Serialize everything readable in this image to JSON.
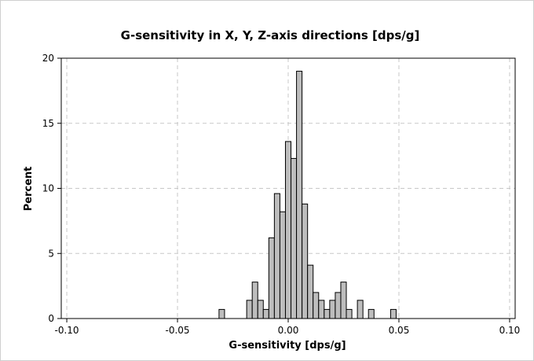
{
  "chart_data": {
    "type": "bar",
    "title": "G-sensitivity in X, Y, Z-axis directions [dps/g]",
    "xlabel": "G-sensitivity [dps/g]",
    "ylabel": "Percent",
    "xlim": [
      -0.1025,
      0.1025
    ],
    "ylim": [
      0,
      20
    ],
    "xticks": [
      -0.1,
      -0.05,
      0.0,
      0.05,
      0.1
    ],
    "xtick_labels": [
      "-0.10",
      "-0.05",
      "0.00",
      "0.05",
      "0.10"
    ],
    "yticks": [
      0,
      5,
      10,
      15,
      20
    ],
    "ytick_labels": [
      "0",
      "5",
      "10",
      "15",
      "20"
    ],
    "bin_width": 0.0025,
    "bin_centers": [
      -0.03,
      -0.0175,
      -0.015,
      -0.0125,
      -0.01,
      -0.0075,
      -0.005,
      -0.0025,
      0.0,
      0.0025,
      0.005,
      0.0075,
      0.01,
      0.0125,
      0.015,
      0.0175,
      0.02,
      0.0225,
      0.025,
      0.0275,
      0.0325,
      0.0375,
      0.0475
    ],
    "values": [
      0.7,
      1.4,
      2.8,
      1.4,
      0.7,
      6.2,
      9.6,
      8.2,
      13.6,
      12.3,
      19.0,
      8.8,
      4.1,
      2.0,
      1.4,
      0.7,
      1.4,
      2.0,
      2.8,
      0.7,
      1.4,
      0.7,
      0.7
    ],
    "grid": true,
    "colors": {
      "bar_fill": "#bdbdbd",
      "bar_edge": "#000000",
      "grid": "#c8c8c8"
    }
  }
}
